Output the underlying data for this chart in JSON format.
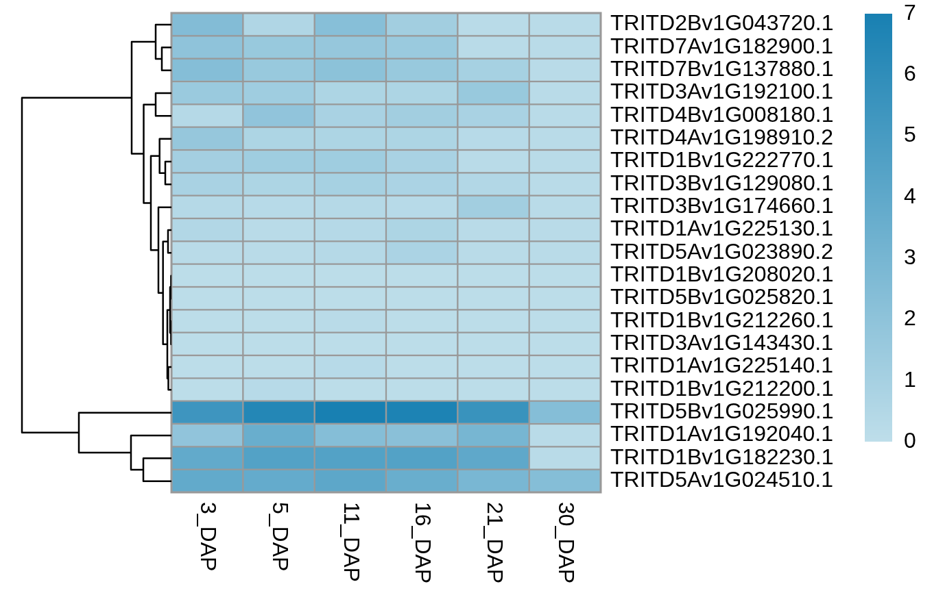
{
  "chart_data": {
    "type": "heatmap",
    "categories": [
      "3_DAP",
      "5_DAP",
      "11_DAP",
      "16_DAP",
      "21_DAP",
      "30_DAP"
    ],
    "y_categories": [
      "TRITD2Bv1G043720.1",
      "TRITD7Av1G182900.1",
      "TRITD7Bv1G137880.1",
      "TRITD3Av1G192100.1",
      "TRITD4Bv1G008180.1",
      "TRITD4Av1G198910.2",
      "TRITD1Bv1G222770.1",
      "TRITD3Bv1G129080.1",
      "TRITD3Bv1G174660.1",
      "TRITD1Av1G225130.1",
      "TRITD5Av1G023890.2",
      "TRITD1Bv1G208020.1",
      "TRITD5Bv1G025820.1",
      "TRITD1Bv1G212260.1",
      "TRITD3Av1G143430.1",
      "TRITD1Av1G225140.1",
      "TRITD1Bv1G212200.1",
      "TRITD5Bv1G025990.1",
      "TRITD1Av1G192040.1",
      "TRITD1Bv1G182230.1",
      "TRITD5Av1G024510.1"
    ],
    "cells": [
      [
        2.5,
        0.6,
        2.3,
        1.2,
        0.2,
        0.2
      ],
      [
        2.0,
        1.6,
        1.7,
        1.5,
        0.2,
        0.2
      ],
      [
        2.4,
        1.6,
        2.1,
        1.6,
        1.0,
        0.2
      ],
      [
        1.5,
        1.3,
        0.7,
        0.7,
        1.6,
        0.2
      ],
      [
        0.4,
        1.9,
        0.9,
        1.2,
        0.9,
        0.2
      ],
      [
        1.7,
        0.7,
        0.7,
        0.7,
        0.3,
        0.2
      ],
      [
        1.1,
        1.3,
        1.3,
        0.9,
        0.2,
        0.2
      ],
      [
        0.9,
        0.7,
        1.0,
        0.8,
        0.5,
        0.2
      ],
      [
        0.4,
        0.3,
        0.4,
        0.3,
        1.2,
        0.2
      ],
      [
        0.5,
        0.2,
        0.4,
        0.7,
        0.2,
        0.2
      ],
      [
        0.2,
        0.2,
        0.4,
        0.8,
        0.2,
        0.2
      ],
      [
        0.1,
        0.1,
        0.1,
        0.1,
        0.1,
        0.1
      ],
      [
        0.1,
        0.1,
        0.1,
        0.1,
        0.1,
        0.1
      ],
      [
        0.1,
        0.1,
        0.2,
        0.1,
        0.1,
        0.1
      ],
      [
        0.1,
        0.1,
        0.1,
        0.1,
        0.1,
        0.1
      ],
      [
        0.1,
        0.1,
        0.3,
        0.1,
        0.1,
        0.1
      ],
      [
        0.1,
        0.3,
        0.1,
        0.1,
        0.1,
        0.1
      ],
      [
        5.4,
        6.5,
        7.0,
        6.8,
        5.6,
        2.4
      ],
      [
        1.9,
        3.6,
        2.4,
        2.2,
        3.0,
        0.2
      ],
      [
        3.9,
        4.5,
        4.5,
        4.5,
        4.0,
        0.2
      ],
      [
        3.9,
        3.8,
        4.1,
        3.6,
        2.9,
        2.4
      ]
    ],
    "clim": [
      0,
      7
    ],
    "cticks": [
      0,
      1,
      2,
      3,
      4,
      5,
      6,
      7
    ]
  }
}
